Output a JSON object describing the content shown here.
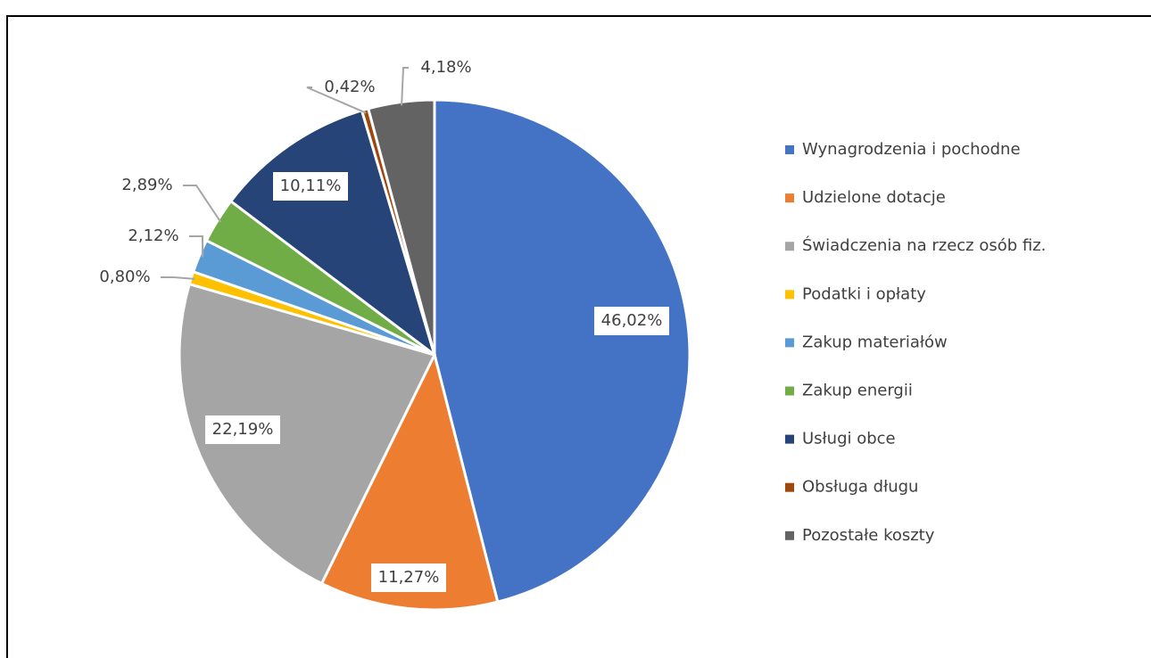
{
  "chart_data": {
    "type": "pie",
    "categories": [
      "Wynagrodzenia i pochodne",
      "Udzielone dotacje",
      "Świadczenia na rzecz osób fiz.",
      "Podatki i opłaty",
      "Zakup materiałów",
      "Zakup energii",
      "Usługi obce",
      "Obsługa długu",
      "Pozostałe koszty"
    ],
    "values": [
      46.02,
      11.27,
      22.19,
      0.8,
      2.12,
      2.89,
      10.11,
      0.42,
      4.18
    ],
    "value_labels": [
      "46,02%",
      "11,27%",
      "22,19%",
      "0,80%",
      "2,12%",
      "2,89%",
      "10,11%",
      "0,42%",
      "4,18%"
    ],
    "colors": [
      "#4472c4",
      "#ed7d31",
      "#a5a5a5",
      "#ffc000",
      "#5b9bd5",
      "#70ad47",
      "#264478",
      "#9e480e",
      "#636363"
    ],
    "legend": "right"
  }
}
